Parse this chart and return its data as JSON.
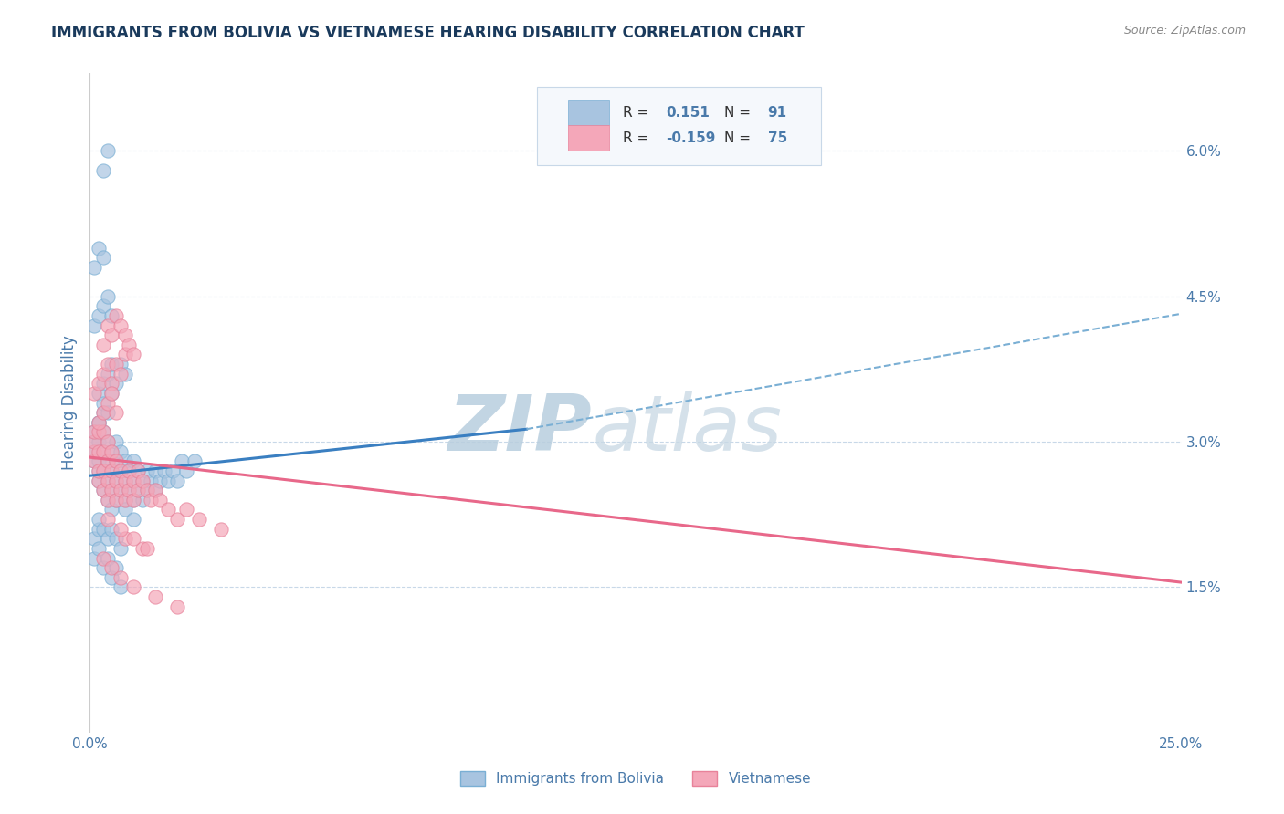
{
  "title": "IMMIGRANTS FROM BOLIVIA VS VIETNAMESE HEARING DISABILITY CORRELATION CHART",
  "source_text": "Source: ZipAtlas.com",
  "ylabel": "Hearing Disability",
  "xlim": [
    0.0,
    0.25
  ],
  "ylim": [
    0.0,
    0.068
  ],
  "xticks": [
    0.0,
    0.05,
    0.1,
    0.15,
    0.2,
    0.25
  ],
  "xtick_labels": [
    "0.0%",
    "",
    "",
    "",
    "",
    "25.0%"
  ],
  "yticks": [
    0.015,
    0.03,
    0.045,
    0.06
  ],
  "ytick_labels": [
    "1.5%",
    "3.0%",
    "4.5%",
    "6.0%"
  ],
  "bolivia_color": "#a8c4e0",
  "bolivia_edge_color": "#7aafd4",
  "vietnamese_color": "#f4a7b9",
  "vietnamese_edge_color": "#e8829a",
  "trend_bolivia_solid_color": "#3a7fc1",
  "trend_bolivia_dash_color": "#7aafd4",
  "trend_vietnamese_color": "#e8688a",
  "watermark_zip": "ZIP",
  "watermark_atlas": "atlas",
  "watermark_color": "#d0dde8",
  "title_color": "#1a3a5c",
  "axis_label_color": "#4a7aaa",
  "tick_color": "#4a7aaa",
  "grid_color": "#c8d8e8",
  "legend_text_color": "#1a3a5c",
  "bolivia_x": [
    0.001,
    0.001,
    0.001,
    0.001,
    0.002,
    0.002,
    0.002,
    0.002,
    0.002,
    0.003,
    0.003,
    0.003,
    0.003,
    0.003,
    0.004,
    0.004,
    0.004,
    0.004,
    0.005,
    0.005,
    0.005,
    0.005,
    0.006,
    0.006,
    0.006,
    0.006,
    0.007,
    0.007,
    0.007,
    0.008,
    0.008,
    0.008,
    0.009,
    0.009,
    0.01,
    0.01,
    0.01,
    0.011,
    0.011,
    0.012,
    0.012,
    0.013,
    0.013,
    0.014,
    0.015,
    0.015,
    0.016,
    0.017,
    0.018,
    0.019,
    0.02,
    0.021,
    0.022,
    0.024,
    0.002,
    0.003,
    0.004,
    0.005,
    0.006,
    0.007,
    0.008,
    0.001,
    0.002,
    0.003,
    0.004,
    0.005,
    0.001,
    0.002,
    0.003,
    0.002,
    0.003,
    0.004,
    0.005,
    0.001,
    0.002,
    0.001,
    0.002,
    0.003,
    0.004,
    0.005,
    0.006,
    0.007,
    0.002,
    0.003,
    0.004,
    0.008,
    0.01,
    0.005,
    0.006,
    0.007,
    0.003,
    0.004
  ],
  "bolivia_y": [
    0.028,
    0.029,
    0.03,
    0.031,
    0.026,
    0.027,
    0.028,
    0.03,
    0.032,
    0.025,
    0.027,
    0.029,
    0.031,
    0.033,
    0.024,
    0.026,
    0.028,
    0.03,
    0.023,
    0.025,
    0.027,
    0.029,
    0.024,
    0.026,
    0.028,
    0.03,
    0.025,
    0.027,
    0.029,
    0.024,
    0.026,
    0.028,
    0.025,
    0.027,
    0.024,
    0.026,
    0.028,
    0.025,
    0.027,
    0.024,
    0.026,
    0.025,
    0.027,
    0.026,
    0.025,
    0.027,
    0.026,
    0.027,
    0.026,
    0.027,
    0.026,
    0.028,
    0.027,
    0.028,
    0.035,
    0.036,
    0.037,
    0.038,
    0.036,
    0.038,
    0.037,
    0.042,
    0.043,
    0.044,
    0.045,
    0.043,
    0.048,
    0.05,
    0.049,
    0.032,
    0.034,
    0.033,
    0.035,
    0.02,
    0.021,
    0.018,
    0.019,
    0.017,
    0.018,
    0.016,
    0.017,
    0.015,
    0.022,
    0.021,
    0.02,
    0.023,
    0.022,
    0.021,
    0.02,
    0.019,
    0.058,
    0.06
  ],
  "vietnamese_x": [
    0.001,
    0.001,
    0.001,
    0.001,
    0.002,
    0.002,
    0.002,
    0.002,
    0.003,
    0.003,
    0.003,
    0.003,
    0.004,
    0.004,
    0.004,
    0.004,
    0.005,
    0.005,
    0.005,
    0.006,
    0.006,
    0.006,
    0.007,
    0.007,
    0.008,
    0.008,
    0.009,
    0.009,
    0.01,
    0.01,
    0.011,
    0.011,
    0.012,
    0.013,
    0.014,
    0.015,
    0.016,
    0.018,
    0.02,
    0.022,
    0.025,
    0.03,
    0.001,
    0.002,
    0.003,
    0.004,
    0.005,
    0.006,
    0.007,
    0.008,
    0.002,
    0.003,
    0.004,
    0.005,
    0.006,
    0.003,
    0.004,
    0.005,
    0.006,
    0.007,
    0.008,
    0.009,
    0.01,
    0.003,
    0.005,
    0.007,
    0.01,
    0.015,
    0.02,
    0.008,
    0.012,
    0.004,
    0.007,
    0.01,
    0.013
  ],
  "vietnamese_y": [
    0.028,
    0.029,
    0.03,
    0.031,
    0.026,
    0.027,
    0.029,
    0.031,
    0.025,
    0.027,
    0.029,
    0.031,
    0.024,
    0.026,
    0.028,
    0.03,
    0.025,
    0.027,
    0.029,
    0.024,
    0.026,
    0.028,
    0.025,
    0.027,
    0.024,
    0.026,
    0.025,
    0.027,
    0.024,
    0.026,
    0.025,
    0.027,
    0.026,
    0.025,
    0.024,
    0.025,
    0.024,
    0.023,
    0.022,
    0.023,
    0.022,
    0.021,
    0.035,
    0.036,
    0.037,
    0.038,
    0.036,
    0.038,
    0.037,
    0.039,
    0.032,
    0.033,
    0.034,
    0.035,
    0.033,
    0.04,
    0.042,
    0.041,
    0.043,
    0.042,
    0.041,
    0.04,
    0.039,
    0.018,
    0.017,
    0.016,
    0.015,
    0.014,
    0.013,
    0.02,
    0.019,
    0.022,
    0.021,
    0.02,
    0.019
  ],
  "trend_bolivia_x0": 0.0,
  "trend_bolivia_y0": 0.0265,
  "trend_bolivia_x_solid_end": 0.1,
  "trend_bolivia_y_solid_end": 0.0313,
  "trend_bolivia_x1": 0.25,
  "trend_bolivia_y1": 0.0432,
  "trend_vietnamese_x0": 0.0,
  "trend_vietnamese_y0": 0.0284,
  "trend_vietnamese_x1": 0.25,
  "trend_vietnamese_y1": 0.0155
}
